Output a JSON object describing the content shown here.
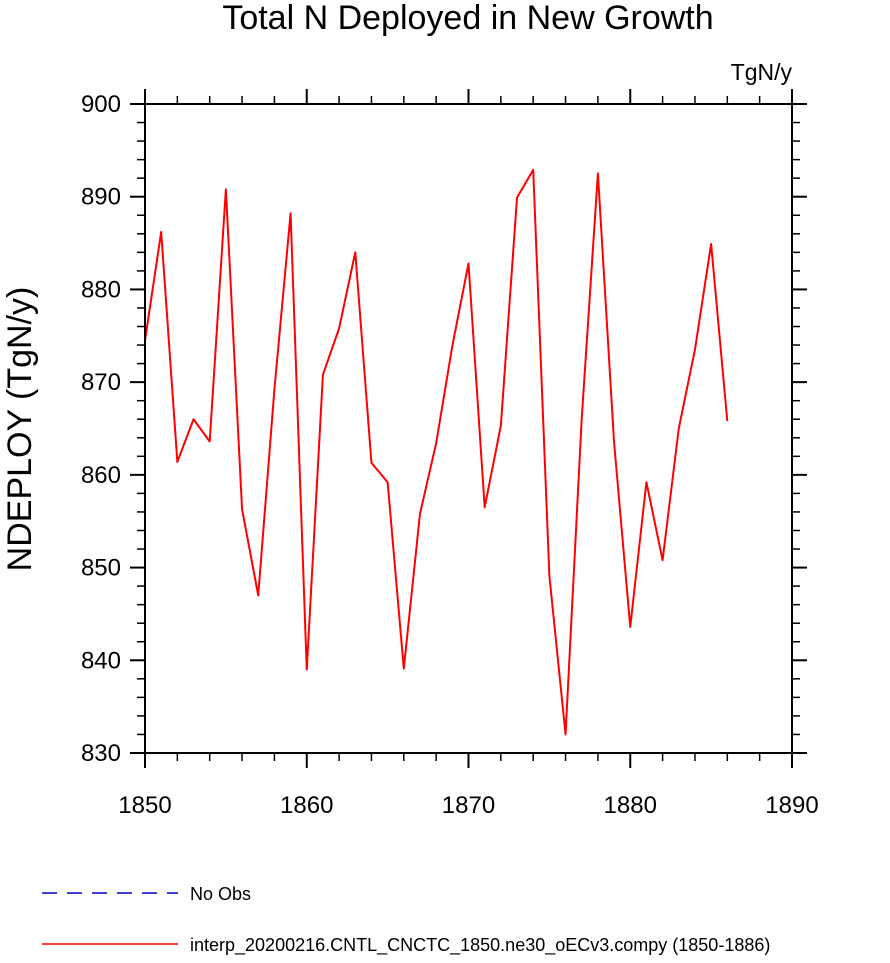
{
  "chart_data": {
    "type": "line",
    "title": "Total N Deployed in New Growth",
    "units": "TgN/y",
    "ylabel": "NDEPLOY  (TgN/y)",
    "xlabel": "",
    "xlim": [
      1850,
      1890
    ],
    "ylim": [
      830,
      900
    ],
    "x_ticks": [
      1850,
      1860,
      1870,
      1880,
      1890
    ],
    "y_ticks": [
      830,
      840,
      850,
      860,
      870,
      880,
      890,
      900
    ],
    "grid": false,
    "legend_position": "bottom-left",
    "series": [
      {
        "name": "No Obs",
        "color": "#0000CC",
        "dash": "dashed",
        "x": [],
        "values": []
      },
      {
        "name": "interp_20200216.CNTL_CNCTC_1850.ne30_oECv3.compy (1850-1886)",
        "color": "#FF0000",
        "dash": "solid",
        "x": [
          1850,
          1851,
          1852,
          1853,
          1854,
          1855,
          1856,
          1857,
          1858,
          1859,
          1860,
          1861,
          1862,
          1863,
          1864,
          1865,
          1866,
          1867,
          1868,
          1869,
          1870,
          1871,
          1872,
          1873,
          1874,
          1875,
          1876,
          1877,
          1878,
          1879,
          1880,
          1881,
          1882,
          1883,
          1884,
          1885,
          1886
        ],
        "values": [
          874.5,
          886.2,
          861.4,
          866.0,
          863.6,
          890.8,
          856.3,
          847.0,
          869.2,
          888.2,
          839.0,
          870.8,
          875.8,
          884.0,
          861.3,
          859.2,
          839.1,
          855.8,
          863.4,
          873.9,
          882.8,
          856.5,
          865.3,
          889.9,
          892.9,
          849.1,
          832.0,
          866.1,
          892.5,
          863.5,
          843.6,
          859.2,
          850.8,
          865.0,
          873.5,
          884.9,
          865.8
        ]
      }
    ]
  }
}
